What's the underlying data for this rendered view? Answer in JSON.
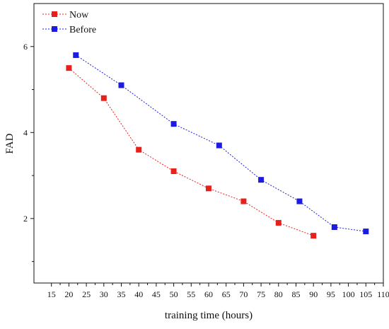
{
  "chart_data": {
    "type": "line",
    "xlabel": "training time (hours)",
    "ylabel": "FAD",
    "xlim": [
      10,
      110
    ],
    "ylim": [
      0.5,
      7.0
    ],
    "x_ticks": [
      15,
      20,
      25,
      30,
      35,
      40,
      45,
      50,
      55,
      60,
      65,
      70,
      75,
      80,
      85,
      90,
      95,
      100,
      105,
      110
    ],
    "y_ticks": [
      2,
      4,
      6
    ],
    "grid": false,
    "legend_position": "top-left",
    "line_style": "dotted",
    "series": [
      {
        "name": "Now",
        "color": "#e8201c",
        "x": [
          20,
          30,
          40,
          50,
          60,
          70,
          80,
          90
        ],
        "y": [
          5.5,
          4.8,
          3.6,
          3.1,
          2.7,
          2.4,
          1.9,
          1.6
        ]
      },
      {
        "name": "Before",
        "color": "#1c1ce0",
        "x": [
          22,
          35,
          50,
          63,
          75,
          86,
          96,
          105
        ],
        "y": [
          5.8,
          5.1,
          4.2,
          3.7,
          2.9,
          2.4,
          1.8,
          1.7
        ]
      }
    ]
  }
}
